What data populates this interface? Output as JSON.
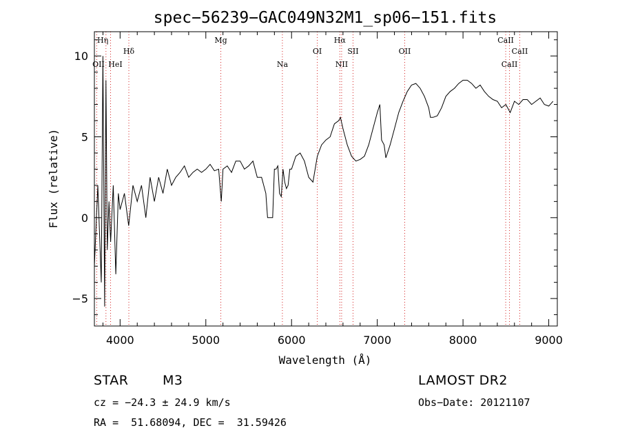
{
  "chart_data": {
    "type": "line",
    "title": "spec−56239−GAC049N32M1_sp06−151.fits",
    "xlabel": "Wavelength (Å)",
    "ylabel": "Flux (relative)",
    "xlim": [
      3700,
      9100
    ],
    "ylim": [
      -6.7,
      11.5
    ],
    "xticks": [
      4000,
      5000,
      6000,
      7000,
      8000,
      9000
    ],
    "xtick_labels": [
      "4000",
      "5000",
      "6000",
      "7000",
      "8000",
      "9000"
    ],
    "yticks": [
      -5,
      0,
      5,
      10
    ],
    "ytick_labels": [
      "−5",
      "0",
      "5",
      "10"
    ],
    "grid": false,
    "series": [
      {
        "name": "flux",
        "x": [
          3700,
          3740,
          3780,
          3800,
          3820,
          3835,
          3850,
          3870,
          3890,
          3920,
          3950,
          3980,
          4000,
          4050,
          4100,
          4150,
          4200,
          4250,
          4300,
          4350,
          4400,
          4450,
          4500,
          4550,
          4600,
          4650,
          4700,
          4750,
          4800,
          4850,
          4900,
          4950,
          5000,
          5050,
          5100,
          5150,
          5180,
          5200,
          5250,
          5300,
          5350,
          5400,
          5450,
          5500,
          5550,
          5600,
          5650,
          5700,
          5720,
          5740,
          5760,
          5780,
          5800,
          5820,
          5840,
          5860,
          5880,
          5900,
          5920,
          5940,
          5960,
          5980,
          6000,
          6050,
          6100,
          6150,
          6200,
          6250,
          6300,
          6350,
          6400,
          6450,
          6500,
          6550,
          6570,
          6600,
          6650,
          6700,
          6750,
          6800,
          6850,
          6900,
          6950,
          7000,
          7030,
          7050,
          7080,
          7100,
          7150,
          7200,
          7250,
          7300,
          7350,
          7400,
          7450,
          7500,
          7550,
          7600,
          7620,
          7650,
          7700,
          7750,
          7800,
          7850,
          7900,
          7950,
          8000,
          8050,
          8100,
          8150,
          8200,
          8250,
          8300,
          8350,
          8400,
          8450,
          8500,
          8550,
          8600,
          8650,
          8700,
          8750,
          8800,
          8850,
          8900,
          8950,
          9000,
          9050
        ],
        "values": [
          -3.0,
          2.0,
          -4.0,
          10.0,
          -5.5,
          8.5,
          -2.0,
          1.0,
          -1.5,
          2.0,
          -3.5,
          1.5,
          0.5,
          1.5,
          -0.5,
          2.0,
          1.0,
          2.0,
          0.0,
          2.5,
          1.0,
          2.5,
          1.5,
          3.0,
          2.0,
          2.5,
          2.8,
          3.2,
          2.5,
          2.8,
          3.0,
          2.8,
          3.0,
          3.3,
          2.9,
          3.0,
          1.0,
          3.0,
          3.2,
          2.8,
          3.5,
          3.5,
          3.0,
          3.2,
          3.5,
          2.5,
          2.5,
          1.5,
          0.0,
          0.0,
          0.0,
          0.0,
          3.0,
          3.0,
          3.2,
          1.5,
          1.3,
          3.0,
          2.2,
          1.8,
          2.0,
          3.0,
          3.0,
          3.8,
          4.0,
          3.5,
          2.5,
          2.2,
          3.8,
          4.5,
          4.8,
          5.0,
          5.8,
          6.0,
          6.2,
          5.5,
          4.5,
          3.8,
          3.5,
          3.6,
          3.8,
          4.5,
          5.5,
          6.5,
          7.0,
          4.8,
          4.5,
          3.7,
          4.5,
          5.5,
          6.5,
          7.2,
          7.8,
          8.2,
          8.3,
          8.0,
          7.5,
          6.8,
          6.2,
          6.2,
          6.3,
          6.8,
          7.5,
          7.8,
          8.0,
          8.3,
          8.5,
          8.5,
          8.3,
          8.0,
          8.2,
          7.8,
          7.5,
          7.3,
          7.2,
          6.8,
          7.0,
          6.5,
          7.2,
          7.0,
          7.3,
          7.3,
          7.0,
          7.2,
          7.4,
          7.0,
          6.9,
          7.2
        ]
      }
    ],
    "line_annotations": [
      {
        "name": "OII",
        "wavelength": 3727
      },
      {
        "name": "Hη",
        "wavelength": 3835
      },
      {
        "name": "HeI",
        "wavelength": 3889
      },
      {
        "name": "Hδ",
        "wavelength": 4102
      },
      {
        "name": "Mg",
        "wavelength": 5175
      },
      {
        "name": "Na",
        "wavelength": 5893
      },
      {
        "name": "OI",
        "wavelength": 6300
      },
      {
        "name": "Hα",
        "wavelength": 6563
      },
      {
        "name": "NII",
        "wavelength": 6584
      },
      {
        "name": "SII",
        "wavelength": 6717
      },
      {
        "name": "OII",
        "wavelength": 7320
      },
      {
        "name": "CaII",
        "wavelength": 8498
      },
      {
        "name": "CaII",
        "wavelength": 8542
      },
      {
        "name": "CaII",
        "wavelength": 8662
      }
    ]
  },
  "info": {
    "object_type": "STAR",
    "subclass": "M3",
    "redshift": "cz = −24.3 ± 24.9 km/s",
    "coords": "RA =  51.68094, DEC =  31.59426",
    "survey": "LAMOST DR2",
    "obs_date": "Obs−Date: 20121107"
  }
}
